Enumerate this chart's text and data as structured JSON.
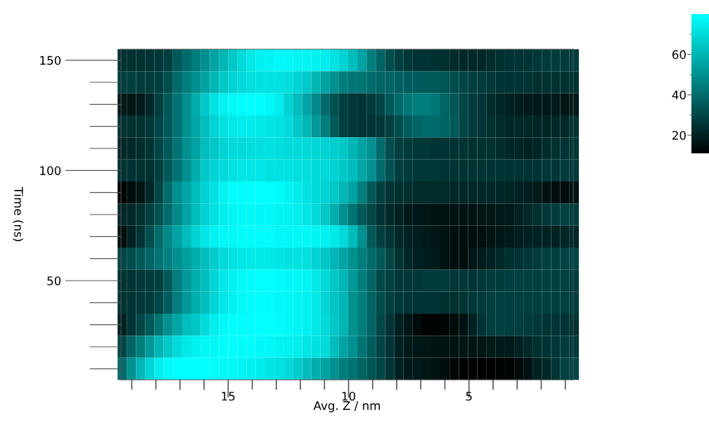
{
  "chart_data": {
    "type": "heatmap",
    "xlabel": "Avg. Z / nm",
    "ylabel": "Time (ns)",
    "x": [
      19.4,
      19.02,
      18.63,
      18.25,
      17.87,
      17.49,
      17.1,
      16.72,
      16.34,
      15.95,
      15.57,
      15.19,
      14.8,
      14.42,
      14.04,
      13.66,
      13.27,
      12.89,
      12.51,
      12.12,
      11.74,
      11.36,
      10.97,
      10.59,
      10.21,
      9.83,
      9.44,
      9.06,
      8.68,
      8.29,
      7.91,
      7.53,
      7.14,
      6.76,
      6.38,
      6.0,
      5.61,
      5.23,
      4.85,
      4.46,
      4.08,
      3.7,
      3.31,
      2.93,
      2.55,
      2.17,
      1.78,
      1.4,
      1.02,
      0.63
    ],
    "xlim": [
      19.45,
      0.67
    ],
    "xticks": [
      {
        "value": 19,
        "label": null
      },
      {
        "value": 18,
        "label": null
      },
      {
        "value": 17,
        "label": null
      },
      {
        "value": 16,
        "label": null
      },
      15,
      {
        "value": 14,
        "label": null
      },
      {
        "value": 13,
        "label": null
      },
      {
        "value": 12,
        "label": null
      },
      {
        "value": 11,
        "label": null
      },
      10,
      {
        "value": 9,
        "label": null
      },
      {
        "value": 8,
        "label": null
      },
      {
        "value": 7,
        "label": null
      },
      {
        "value": 6,
        "label": null
      },
      5,
      {
        "value": 4,
        "label": null
      },
      {
        "value": 3,
        "label": null
      },
      {
        "value": 2,
        "label": null
      },
      {
        "value": 1,
        "label": null
      }
    ],
    "y_categories": [
      "150",
      null,
      null,
      null,
      null,
      "100",
      null,
      null,
      null,
      null,
      "50",
      null,
      null,
      null,
      null
    ],
    "colors": [
      "#000000",
      "#00ffff"
    ],
    "clim": [
      11,
      80
    ],
    "cticks": [
      20,
      {
        "value": 30,
        "label": null
      },
      40,
      {
        "value": 50,
        "label": null
      },
      60,
      {
        "value": 70,
        "label": null
      }
    ],
    "cells": [
      [
        25,
        24,
        24,
        25,
        26,
        28,
        35,
        40,
        45,
        50,
        55,
        60,
        65,
        70,
        74,
        76,
        77,
        78,
        78,
        77,
        77,
        76,
        75,
        72,
        68,
        62,
        55,
        45,
        38,
        32,
        28,
        26,
        25,
        25,
        24,
        24,
        23,
        22,
        22,
        22,
        23,
        24,
        25,
        25,
        25,
        26,
        27,
        27,
        27,
        28
      ],
      [
        28,
        28,
        27,
        27,
        28,
        32,
        40,
        45,
        50,
        55,
        60,
        65,
        68,
        70,
        71,
        72,
        72,
        72,
        71,
        68,
        65,
        60,
        55,
        50,
        45,
        43,
        42,
        40,
        38,
        38,
        37,
        36,
        36,
        35,
        35,
        34,
        32,
        30,
        28,
        27,
        26,
        25,
        25,
        25,
        25,
        24,
        24,
        24,
        24,
        25
      ],
      [
        18,
        17,
        18,
        22,
        28,
        35,
        42,
        50,
        58,
        65,
        72,
        76,
        78,
        79,
        80,
        79,
        78,
        75,
        68,
        62,
        55,
        48,
        40,
        33,
        28,
        26,
        25,
        27,
        30,
        35,
        40,
        43,
        45,
        45,
        43,
        38,
        34,
        30,
        27,
        25,
        23,
        21,
        20,
        19,
        18,
        18,
        18,
        18,
        17,
        18
      ],
      [
        25,
        24,
        24,
        26,
        30,
        35,
        42,
        50,
        56,
        62,
        68,
        72,
        74,
        75,
        75,
        74,
        73,
        72,
        70,
        65,
        60,
        52,
        45,
        35,
        28,
        26,
        25,
        25,
        26,
        28,
        32,
        36,
        38,
        40,
        40,
        38,
        35,
        30,
        27,
        25,
        24,
        23,
        22,
        22,
        22,
        21,
        21,
        22,
        22,
        25
      ],
      [
        22,
        22,
        23,
        25,
        30,
        35,
        42,
        50,
        55,
        62,
        65,
        68,
        70,
        70,
        71,
        71,
        72,
        71,
        70,
        70,
        70,
        69,
        68,
        67,
        65,
        60,
        55,
        50,
        40,
        32,
        28,
        27,
        26,
        26,
        25,
        25,
        25,
        25,
        24,
        24,
        24,
        23,
        22,
        21,
        20,
        21,
        23,
        24,
        25,
        26
      ],
      [
        25,
        25,
        24,
        24,
        28,
        35,
        42,
        50,
        58,
        65,
        68,
        70,
        72,
        73,
        73,
        73,
        72,
        72,
        72,
        71,
        71,
        70,
        70,
        68,
        65,
        62,
        56,
        50,
        40,
        33,
        28,
        27,
        26,
        26,
        26,
        25,
        25,
        25,
        25,
        25,
        25,
        25,
        25,
        25,
        25,
        25,
        26,
        26,
        27,
        27
      ],
      [
        12,
        14,
        17,
        22,
        30,
        40,
        50,
        56,
        62,
        68,
        72,
        76,
        80,
        80,
        80,
        80,
        80,
        79,
        77,
        75,
        72,
        70,
        68,
        65,
        60,
        55,
        45,
        35,
        28,
        25,
        24,
        24,
        23,
        23,
        23,
        23,
        22,
        22,
        22,
        22,
        22,
        22,
        21,
        20,
        19,
        18,
        16,
        14,
        14,
        16
      ],
      [
        22,
        22,
        24,
        28,
        33,
        40,
        48,
        55,
        62,
        68,
        72,
        75,
        77,
        78,
        78,
        78,
        78,
        77,
        76,
        75,
        73,
        70,
        65,
        58,
        50,
        42,
        35,
        30,
        25,
        22,
        20,
        18,
        17,
        17,
        16,
        16,
        16,
        16,
        16,
        17,
        17,
        18,
        18,
        20,
        22,
        24,
        26,
        27,
        28,
        28
      ],
      [
        15,
        20,
        25,
        32,
        40,
        48,
        55,
        62,
        68,
        73,
        76,
        78,
        78,
        79,
        79,
        79,
        79,
        78,
        78,
        78,
        78,
        77,
        76,
        74,
        70,
        62,
        50,
        35,
        28,
        25,
        22,
        20,
        19,
        18,
        17,
        16,
        15,
        15,
        15,
        15,
        16,
        17,
        18,
        19,
        20,
        20,
        20,
        20,
        21,
        22
      ],
      [
        30,
        32,
        35,
        38,
        42,
        46,
        50,
        54,
        58,
        62,
        66,
        70,
        72,
        73,
        74,
        74,
        74,
        73,
        72,
        72,
        71,
        68,
        65,
        60,
        55,
        50,
        45,
        40,
        35,
        30,
        25,
        22,
        20,
        19,
        18,
        16,
        15,
        15,
        17,
        19,
        20,
        22,
        24,
        25,
        26,
        27,
        28,
        28,
        29,
        30
      ],
      [
        25,
        25,
        26,
        27,
        28,
        35,
        45,
        52,
        58,
        62,
        68,
        73,
        76,
        78,
        79,
        80,
        80,
        79,
        78,
        78,
        77,
        74,
        70,
        65,
        60,
        52,
        45,
        38,
        30,
        28,
        26,
        26,
        26,
        27,
        27,
        27,
        26,
        26,
        25,
        26,
        27,
        27,
        28,
        28,
        28,
        28,
        28,
        28,
        28,
        28
      ],
      [
        25,
        25,
        26,
        27,
        30,
        36,
        45,
        52,
        58,
        62,
        68,
        73,
        76,
        78,
        79,
        79,
        79,
        78,
        78,
        77,
        76,
        74,
        68,
        64,
        60,
        50,
        45,
        38,
        32,
        28,
        26,
        25,
        25,
        25,
        25,
        24,
        24,
        25,
        26,
        27,
        28,
        28,
        28,
        28,
        28,
        28,
        28,
        28,
        28,
        28
      ],
      [
        20,
        25,
        30,
        35,
        42,
        50,
        56,
        62,
        65,
        70,
        75,
        78,
        80,
        80,
        80,
        80,
        80,
        79,
        78,
        77,
        76,
        74,
        70,
        65,
        60,
        50,
        45,
        38,
        30,
        25,
        20,
        17,
        14,
        12,
        12,
        13,
        14,
        16,
        20,
        25,
        28,
        28,
        28,
        28,
        27,
        26,
        25,
        25,
        25,
        25
      ],
      [
        30,
        38,
        45,
        52,
        60,
        65,
        70,
        74,
        76,
        78,
        78,
        79,
        79,
        79,
        79,
        78,
        78,
        77,
        76,
        75,
        73,
        72,
        70,
        62,
        55,
        50,
        42,
        36,
        30,
        25,
        20,
        18,
        17,
        17,
        16,
        16,
        16,
        17,
        17,
        17,
        18,
        18,
        18,
        20,
        22,
        24,
        25,
        26,
        27,
        27
      ],
      [
        40,
        50,
        60,
        68,
        75,
        78,
        80,
        80,
        80,
        80,
        79,
        78,
        78,
        77,
        76,
        75,
        73,
        72,
        70,
        66,
        62,
        58,
        55,
        50,
        45,
        42,
        38,
        34,
        30,
        25,
        20,
        18,
        18,
        17,
        16,
        15,
        13,
        12,
        12,
        11,
        11,
        12,
        12,
        14,
        16,
        20,
        22,
        25,
        28,
        30
      ]
    ],
    "grid": false
  }
}
